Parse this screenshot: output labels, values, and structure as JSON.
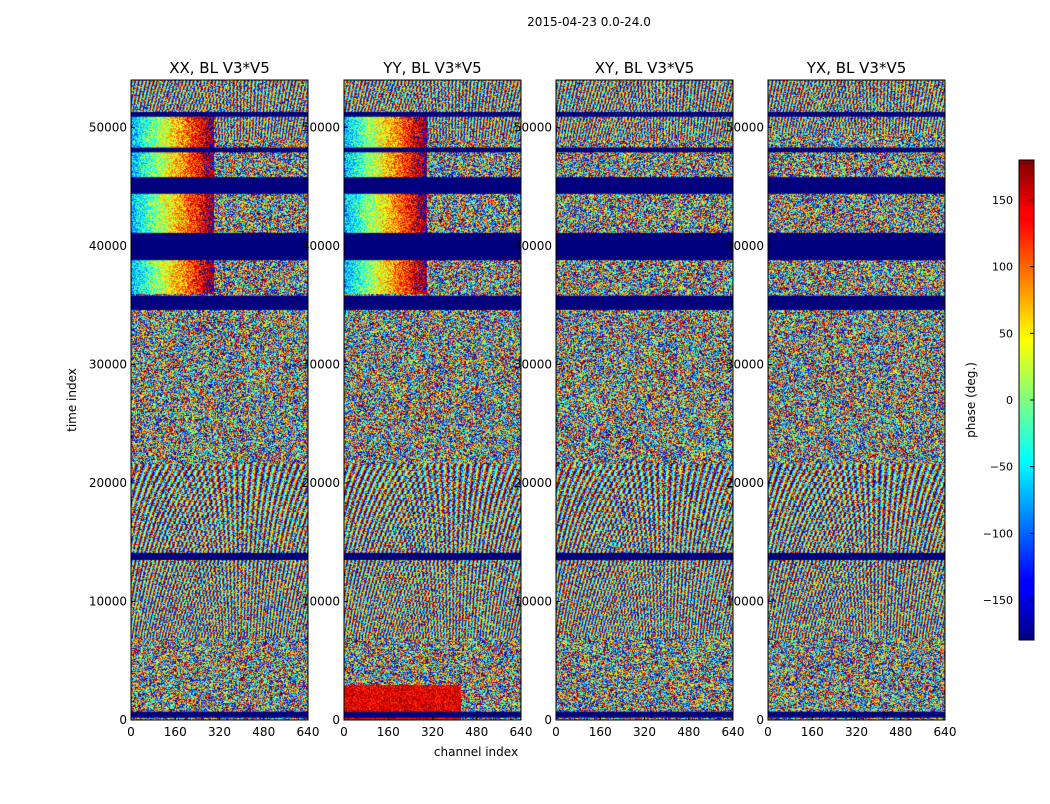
{
  "figure": {
    "suptitle": "2015-04-23 0.0-24.0"
  },
  "chart_data": {
    "type": "heatmap",
    "suptitle": "2015-04-23 0.0-24.0",
    "xlabel": "channel index",
    "ylabel": "time index",
    "xlim": [
      0,
      640
    ],
    "ylim": [
      0,
      54000
    ],
    "xticks": [
      0,
      160,
      320,
      480,
      640
    ],
    "yticks": [
      0,
      10000,
      20000,
      30000,
      40000,
      50000
    ],
    "panels": [
      {
        "title": "XX, BL V3*V5",
        "pol": "XX"
      },
      {
        "title": "YY, BL V3*V5",
        "pol": "YY"
      },
      {
        "title": "XY, BL V3*V5",
        "pol": "XY"
      },
      {
        "title": "YX, BL V3*V5",
        "pol": "YX"
      }
    ],
    "flagged_time_ranges": [
      [
        38800,
        41100
      ],
      [
        34600,
        35800
      ],
      [
        44400,
        45800
      ],
      [
        13500,
        14100
      ],
      [
        200,
        700
      ],
      [
        50900,
        51300
      ],
      [
        47900,
        48300
      ]
    ],
    "colorbar": {
      "label": "phase (deg.)",
      "range": [
        -180,
        180
      ],
      "ticks": [
        150,
        100,
        50,
        0,
        -50,
        -100,
        -150
      ],
      "colormap": "jet"
    }
  }
}
